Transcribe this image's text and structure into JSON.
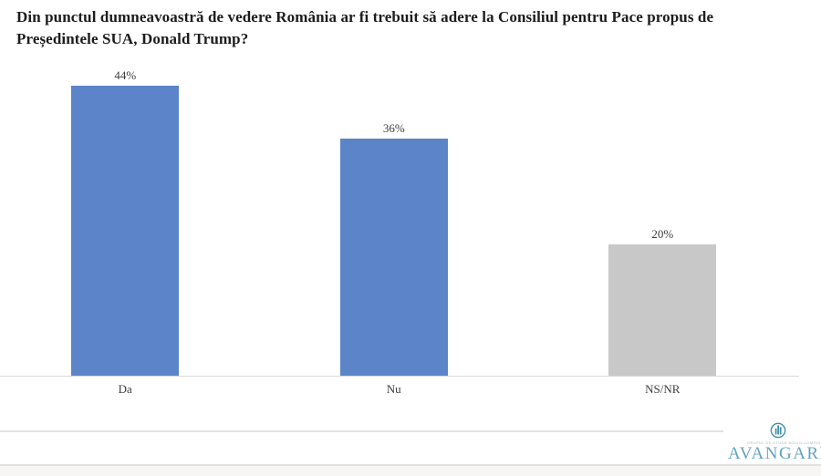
{
  "title": "Din punctul dumneavoastră de vedere România ar fi trebuit să adere la Consiliul pentru Pace propus de Președintele SUA, Donald Trump?",
  "chart_data": {
    "type": "bar",
    "title": "Din punctul dumneavoastră de vedere România ar fi trebuit să adere la Consiliul pentru Pace propus de Președintele SUA, Donald Trump?",
    "categories": [
      "Da",
      "Nu",
      "NS/NR"
    ],
    "values": [
      44,
      36,
      20
    ],
    "value_labels": [
      "44%",
      "36%",
      "20%"
    ],
    "bar_colors": [
      "#5b84c9",
      "#5b84c9",
      "#c8c8c8"
    ],
    "xlabel": "",
    "ylabel": "",
    "ylim": [
      0,
      50
    ],
    "grid": false,
    "legend": false,
    "data_labels_position": "above-bars"
  },
  "colors": {
    "bar_blue": "#5b84c9",
    "bar_gray": "#c8c8c8",
    "axis_line": "#d9d9d9",
    "label_text": "#3d3d3d",
    "title_text": "#1c1c1c",
    "brand_teal": "#64a3c1"
  },
  "footer": {
    "brand": "AVANGARDE",
    "brand_tagline": "GRUPUL DE STUDII SOCIO-COMPORTAMENTALE"
  }
}
